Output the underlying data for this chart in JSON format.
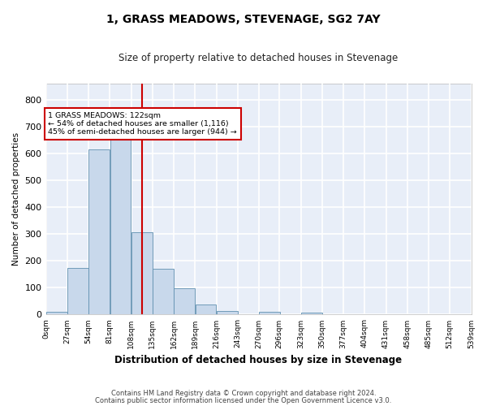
{
  "title": "1, GRASS MEADOWS, STEVENAGE, SG2 7AY",
  "subtitle": "Size of property relative to detached houses in Stevenage",
  "xlabel": "Distribution of detached houses by size in Stevenage",
  "ylabel": "Number of detached properties",
  "bar_color": "#c8d8eb",
  "bar_edge_color": "#6090b0",
  "background_color": "#e8eef8",
  "grid_color": "#ffffff",
  "bin_edges": [
    0,
    27,
    54,
    81,
    108,
    135,
    162,
    189,
    216,
    243,
    270,
    296,
    323,
    350,
    377,
    404,
    431,
    458,
    485,
    512,
    539
  ],
  "bin_labels": [
    "0sqm",
    "27sqm",
    "54sqm",
    "81sqm",
    "108sqm",
    "135sqm",
    "162sqm",
    "189sqm",
    "216sqm",
    "243sqm",
    "270sqm",
    "296sqm",
    "323sqm",
    "350sqm",
    "377sqm",
    "404sqm",
    "431sqm",
    "458sqm",
    "485sqm",
    "512sqm",
    "539sqm"
  ],
  "bar_heights": [
    10,
    175,
    615,
    660,
    305,
    170,
    97,
    37,
    14,
    0,
    10,
    0,
    8,
    0,
    0,
    0,
    0,
    0,
    0,
    0
  ],
  "red_line_x": 122,
  "annotation_text": "1 GRASS MEADOWS: 122sqm\n← 54% of detached houses are smaller (1,116)\n45% of semi-detached houses are larger (944) →",
  "annotation_box_color": "#ffffff",
  "annotation_box_edge": "#cc0000",
  "red_line_color": "#cc0000",
  "ylim": [
    0,
    860
  ],
  "yticks": [
    0,
    100,
    200,
    300,
    400,
    500,
    600,
    700,
    800
  ],
  "footer1": "Contains HM Land Registry data © Crown copyright and database right 2024.",
  "footer2": "Contains public sector information licensed under the Open Government Licence v3.0."
}
